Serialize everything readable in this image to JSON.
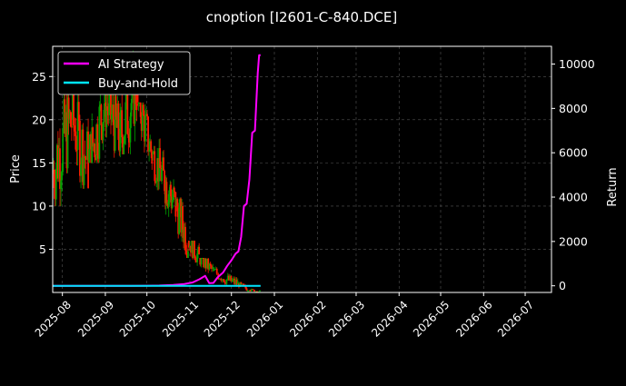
{
  "chart_data": {
    "type": "line",
    "title": "cnoption [I2601-C-840.DCE]",
    "xlabel": "",
    "ylabel": "Price",
    "y2label": "Return",
    "x_range": [
      "2025-07-25",
      "2026-07-20"
    ],
    "x_ticks": [
      "2025-08",
      "2025-09",
      "2025-10",
      "2025-11",
      "2025-12",
      "2026-01",
      "2026-02",
      "2026-03",
      "2026-04",
      "2026-05",
      "2026-06",
      "2026-07"
    ],
    "y_left": {
      "range": [
        0,
        28.5
      ],
      "ticks": [
        5,
        10,
        15,
        20,
        25
      ]
    },
    "y_right": {
      "range": [
        -300,
        10800
      ],
      "ticks": [
        0,
        2000,
        4000,
        6000,
        8000,
        10000
      ]
    },
    "grid": true,
    "legend_position": "top-left",
    "colors": {
      "background": "#000000",
      "up": "#00a000",
      "down": "#ff1a00",
      "ai_strategy": "#ff00ff",
      "buy_and_hold": "#00e5ff",
      "grid": "#555555"
    },
    "series": [
      {
        "name": "AI Strategy",
        "axis": "right",
        "color": "#ff00ff",
        "points": [
          [
            "2025-07-25",
            0
          ],
          [
            "2025-08-15",
            0
          ],
          [
            "2025-09-05",
            0
          ],
          [
            "2025-09-20",
            0
          ],
          [
            "2025-10-01",
            5
          ],
          [
            "2025-10-10",
            10
          ],
          [
            "2025-10-20",
            40
          ],
          [
            "2025-10-28",
            80
          ],
          [
            "2025-11-03",
            150
          ],
          [
            "2025-11-08",
            300
          ],
          [
            "2025-11-12",
            450
          ],
          [
            "2025-11-15",
            120
          ],
          [
            "2025-11-18",
            130
          ],
          [
            "2025-11-21",
            380
          ],
          [
            "2025-11-25",
            600
          ],
          [
            "2025-11-28",
            900
          ],
          [
            "2025-12-01",
            1150
          ],
          [
            "2025-12-04",
            1450
          ],
          [
            "2025-12-06",
            1550
          ],
          [
            "2025-12-08",
            2200
          ],
          [
            "2025-12-10",
            3600
          ],
          [
            "2025-12-12",
            3700
          ],
          [
            "2025-12-14",
            4800
          ],
          [
            "2025-12-16",
            6900
          ],
          [
            "2025-12-18",
            7000
          ],
          [
            "2025-12-20",
            9600
          ],
          [
            "2025-12-21",
            10400
          ],
          [
            "2025-12-22",
            10400
          ]
        ]
      },
      {
        "name": "Buy-and-Hold",
        "axis": "right",
        "color": "#00e5ff",
        "points": [
          [
            "2025-07-25",
            0
          ],
          [
            "2025-12-22",
            0
          ]
        ]
      }
    ],
    "price_segments": [
      [
        "2025-07-25",
        "2025-08-08",
        10,
        24,
        14,
        20,
        20
      ],
      [
        "2025-08-08",
        "2025-08-20",
        12,
        24,
        20,
        15,
        16
      ],
      [
        "2025-08-20",
        "2025-09-01",
        15,
        26,
        15,
        22,
        18
      ],
      [
        "2025-09-01",
        "2025-09-12",
        15,
        25,
        22,
        18,
        18
      ],
      [
        "2025-09-12",
        "2025-09-24",
        16,
        28,
        18,
        24,
        18
      ],
      [
        "2025-09-24",
        "2025-10-05",
        14,
        22,
        23,
        16,
        16
      ],
      [
        "2025-10-05",
        "2025-10-14",
        11,
        18,
        16,
        13,
        14
      ],
      [
        "2025-10-14",
        "2025-10-22",
        8,
        16,
        13,
        10,
        16
      ],
      [
        "2025-10-22",
        "2025-10-31",
        4,
        11,
        10,
        6,
        14
      ],
      [
        "2025-10-31",
        "2025-11-08",
        2.5,
        6,
        6,
        4,
        12
      ],
      [
        "2025-11-08",
        "2025-11-18",
        1.5,
        4,
        4,
        2.5,
        12
      ],
      [
        "2025-11-18",
        "2025-11-28",
        0.8,
        3,
        2.5,
        1.5,
        10
      ],
      [
        "2025-11-28",
        "2025-12-06",
        0.5,
        2.5,
        1.5,
        1,
        10
      ],
      [
        "2025-12-06",
        "2025-12-14",
        0.2,
        1.2,
        1,
        0.3,
        10
      ],
      [
        "2025-12-14",
        "2025-12-22",
        0.1,
        0.6,
        0.3,
        0.1,
        8
      ]
    ]
  }
}
